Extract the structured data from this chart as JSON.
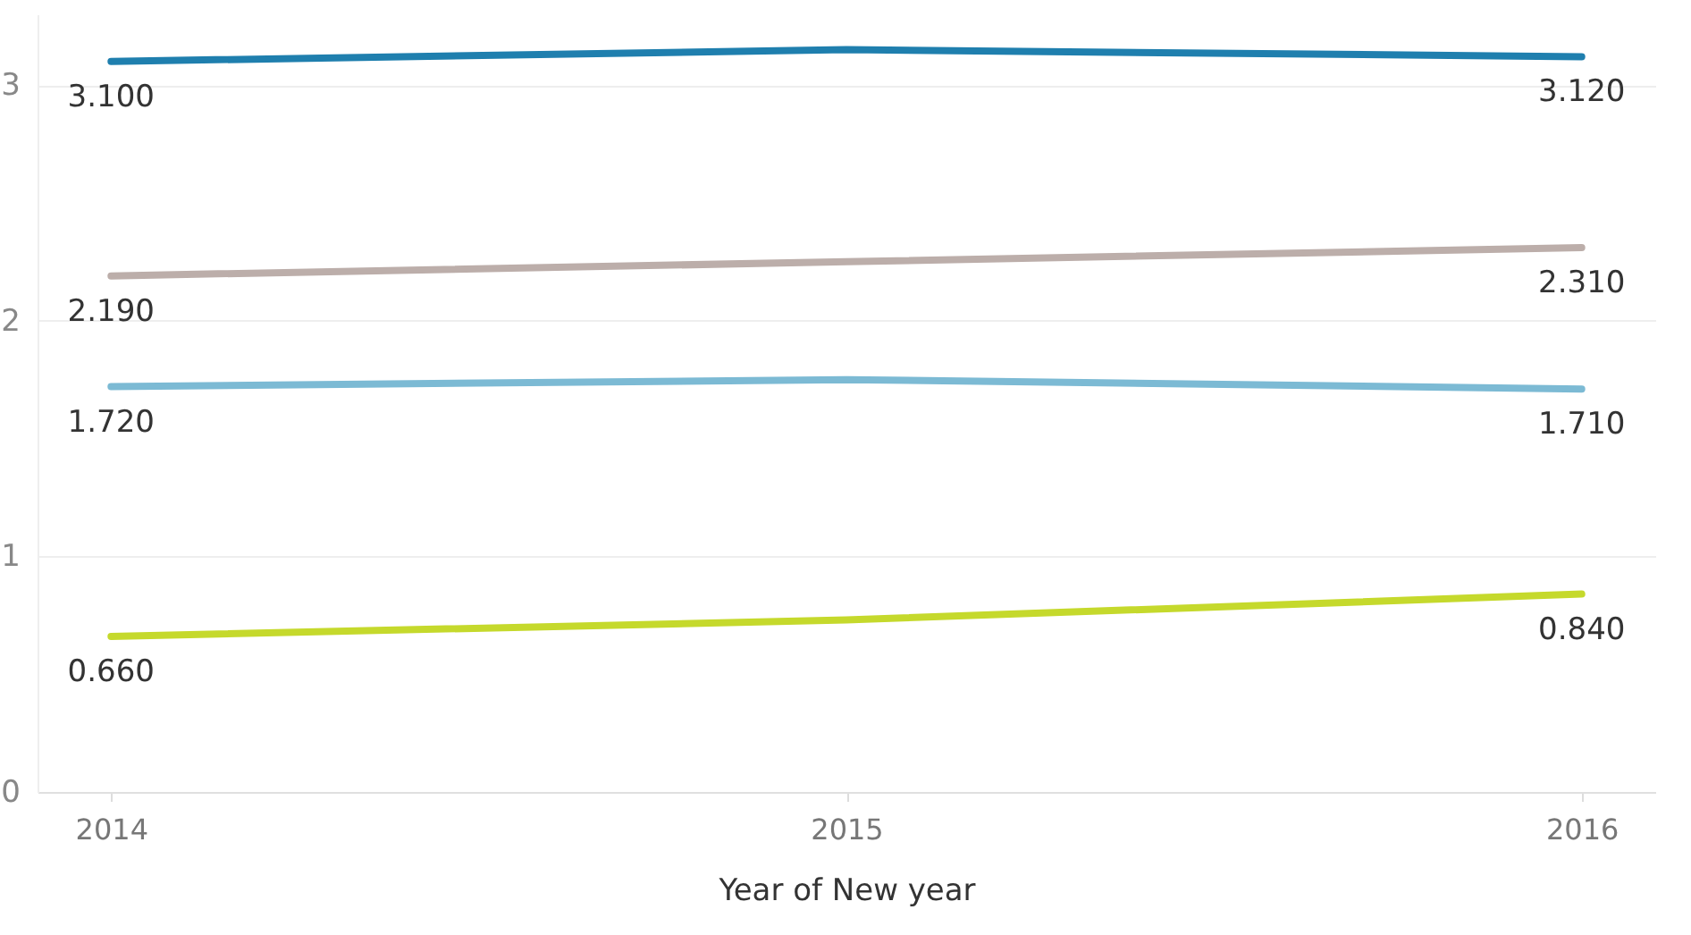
{
  "chart_data": {
    "type": "line",
    "xlabel": "Year of New year",
    "categories": [
      "2014",
      "2015",
      "2016"
    ],
    "series": [
      {
        "color": "#1f7fae",
        "values": [
          3.1,
          3.15,
          3.12
        ],
        "value_labels": [
          "3.100",
          null,
          "3.120"
        ]
      },
      {
        "color": "#bcaeaa",
        "values": [
          2.19,
          2.25,
          2.31
        ],
        "value_labels": [
          "2.190",
          null,
          "2.310"
        ]
      },
      {
        "color": "#7cbad4",
        "values": [
          1.72,
          1.75,
          1.71
        ],
        "value_labels": [
          "1.720",
          null,
          "1.710"
        ]
      },
      {
        "color": "#c5d92c",
        "values": [
          0.66,
          0.73,
          0.84
        ],
        "value_labels": [
          "0.660",
          null,
          "0.840"
        ]
      }
    ],
    "ylim": [
      0,
      3.3
    ],
    "yticks": [
      0,
      1,
      2,
      3
    ],
    "grid": "y",
    "legend": false,
    "marker": "none",
    "line_style": "solid"
  }
}
